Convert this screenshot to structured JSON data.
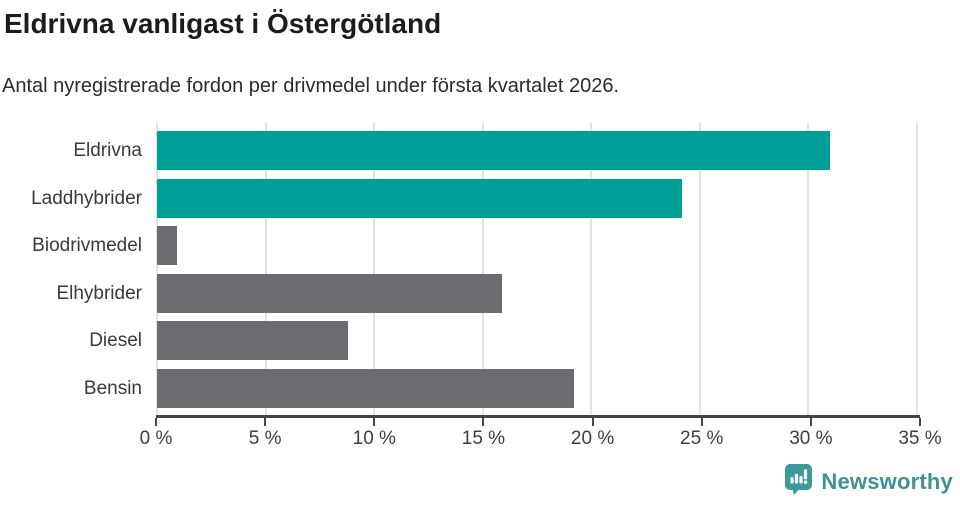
{
  "header": {
    "title": "Eldrivna vanligast i Östergötland",
    "subtitle": "Antal nyregistrerade fordon per drivmedel under första kvartalet 2026."
  },
  "chart_data": {
    "type": "bar",
    "orientation": "horizontal",
    "title": "Eldrivna vanligast i Östergötland",
    "subtitle": "Antal nyregistrerade fordon per drivmedel under första kvartalet 2026.",
    "categories": [
      "Eldrivna",
      "Laddhybrider",
      "Biodrivmedel",
      "Elhybrider",
      "Diesel",
      "Bensin"
    ],
    "values": [
      31.0,
      24.2,
      0.9,
      15.9,
      8.8,
      19.2
    ],
    "unit": "%",
    "xlabel": "",
    "ylabel": "",
    "xlim": [
      0,
      35
    ],
    "x_ticks": [
      0,
      5,
      10,
      15,
      20,
      25,
      30,
      35
    ],
    "x_tick_labels": [
      "0 %",
      "5 %",
      "10 %",
      "15 %",
      "20 %",
      "25 %",
      "30 %",
      "35 %"
    ],
    "bar_colors": [
      "#00a099",
      "#00a099",
      "#6c6b70",
      "#6c6b70",
      "#6c6b70",
      "#6c6b70"
    ],
    "highlight_color": "#00a099",
    "default_color": "#6c6b70",
    "grid": true,
    "legend": false
  },
  "footer": {
    "brand": "Newsworthy",
    "logo_icon": "bar-chart-speech-bubble-icon"
  },
  "colors": {
    "teal_bar": "#00a099",
    "grey_bar": "#6c6b70",
    "gridline": "#e4e4e4",
    "axis_line": "#454545",
    "title_text": "#1c1c1c",
    "label_text": "#3a3a3a",
    "brand_text": "#3e9293",
    "brand_badge": "#3e999b"
  }
}
